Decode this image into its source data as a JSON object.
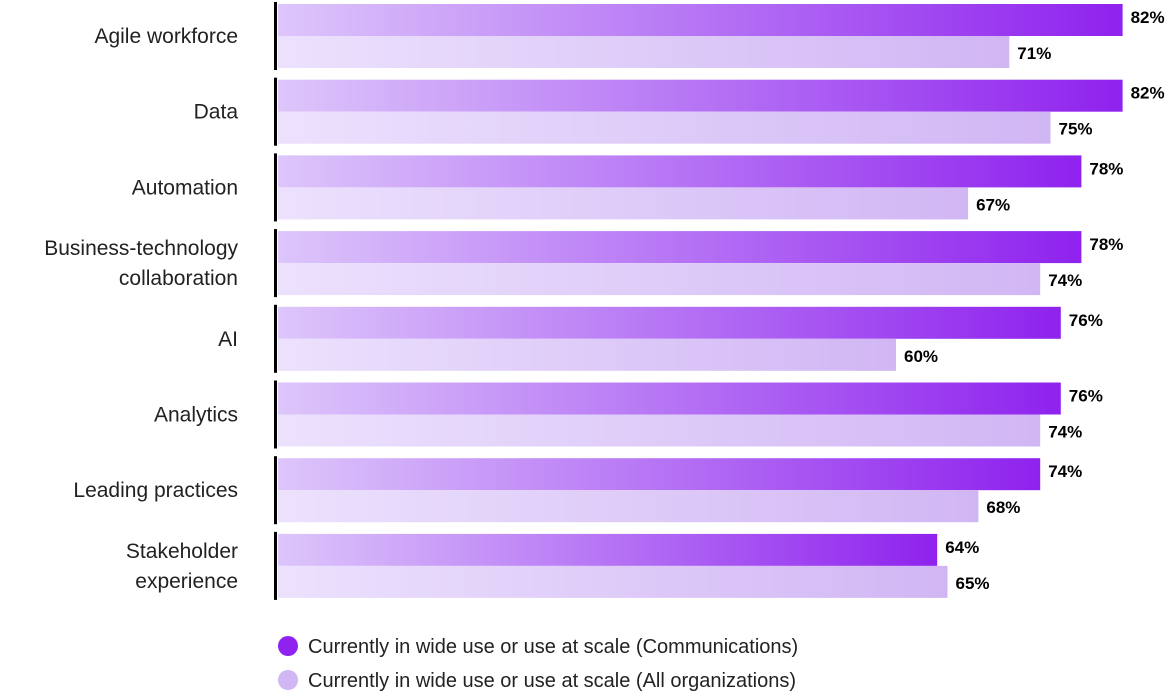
{
  "chart_data": {
    "type": "bar",
    "orientation": "horizontal",
    "categories": [
      [
        "Agile workforce"
      ],
      [
        "Data"
      ],
      [
        "Automation"
      ],
      [
        "Business-technology",
        "collaboration"
      ],
      [
        "AI"
      ],
      [
        "Analytics"
      ],
      [
        "Leading practices"
      ],
      [
        "Stakeholder",
        "experience"
      ]
    ],
    "series": [
      {
        "name": "Currently in wide use or use at scale (Communications)",
        "values": [
          82,
          82,
          78,
          78,
          76,
          76,
          74,
          64
        ],
        "labels": [
          "82%",
          "82%",
          "78%",
          "78%",
          "76%",
          "76%",
          "74%",
          "64%"
        ],
        "color": "#8f22ee"
      },
      {
        "name": "Currently in wide use or use at scale (All organizations)",
        "values": [
          71,
          75,
          67,
          74,
          60,
          74,
          68,
          65
        ],
        "labels": [
          "71%",
          "75%",
          "67%",
          "74%",
          "60%",
          "74%",
          "68%",
          "65%"
        ],
        "color": "#d4b8f5"
      }
    ],
    "xlim": [
      0,
      100
    ],
    "grid": false,
    "legend": "bottom",
    "value_suffix": "%"
  },
  "colors": {
    "series1_start": "#ddc6fb",
    "series1_end": "#8f22ee",
    "series2_start": "#ece1fd",
    "series2_end": "#d1b6f4",
    "axis": "#000000"
  }
}
